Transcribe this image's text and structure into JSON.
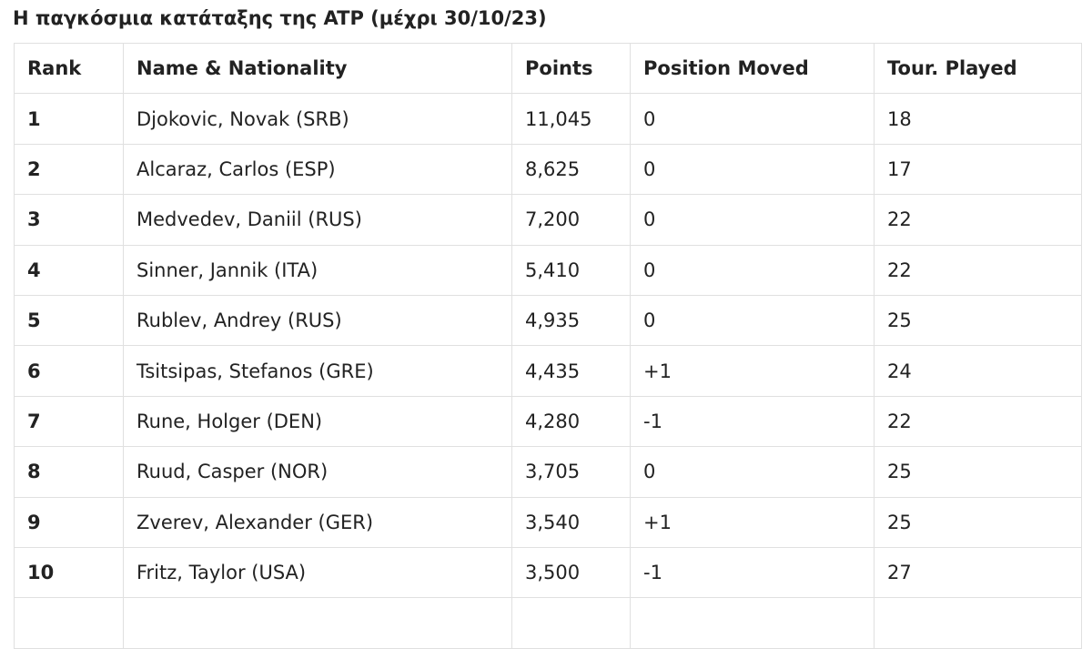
{
  "title": "Η παγκόσμια κατάταξης της ATP (μέχρι 30/10/23)",
  "table": {
    "header": [
      "Rank",
      "Name & Nationality",
      "Points",
      "Position Moved",
      "Tour. Played"
    ],
    "rows": [
      [
        "1",
        "Djokovic, Novak (SRB)",
        "11,045",
        "0",
        "18"
      ],
      [
        "2",
        "Alcaraz, Carlos (ESP)",
        "8,625",
        "0",
        "17"
      ],
      [
        "3",
        "Medvedev, Daniil (RUS)",
        "7,200",
        "0",
        "22"
      ],
      [
        "4",
        "Sinner, Jannik (ITA)",
        "5,410",
        "0",
        "22"
      ],
      [
        "5",
        "Rublev, Andrey (RUS)",
        "4,935",
        "0",
        "25"
      ],
      [
        "6",
        "Tsitsipas, Stefanos (GRE)",
        "4,435",
        "+1",
        "24"
      ],
      [
        "7",
        "Rune, Holger (DEN)",
        "4,280",
        "-1",
        "22"
      ],
      [
        "8",
        "Ruud, Casper (NOR)",
        "3,705",
        "0",
        "25"
      ],
      [
        "9",
        "Zverev, Alexander (GER)",
        "3,540",
        "+1",
        "25"
      ],
      [
        "10",
        "Fritz, Taylor (USA)",
        "3,500",
        "-1",
        "27"
      ]
    ]
  }
}
